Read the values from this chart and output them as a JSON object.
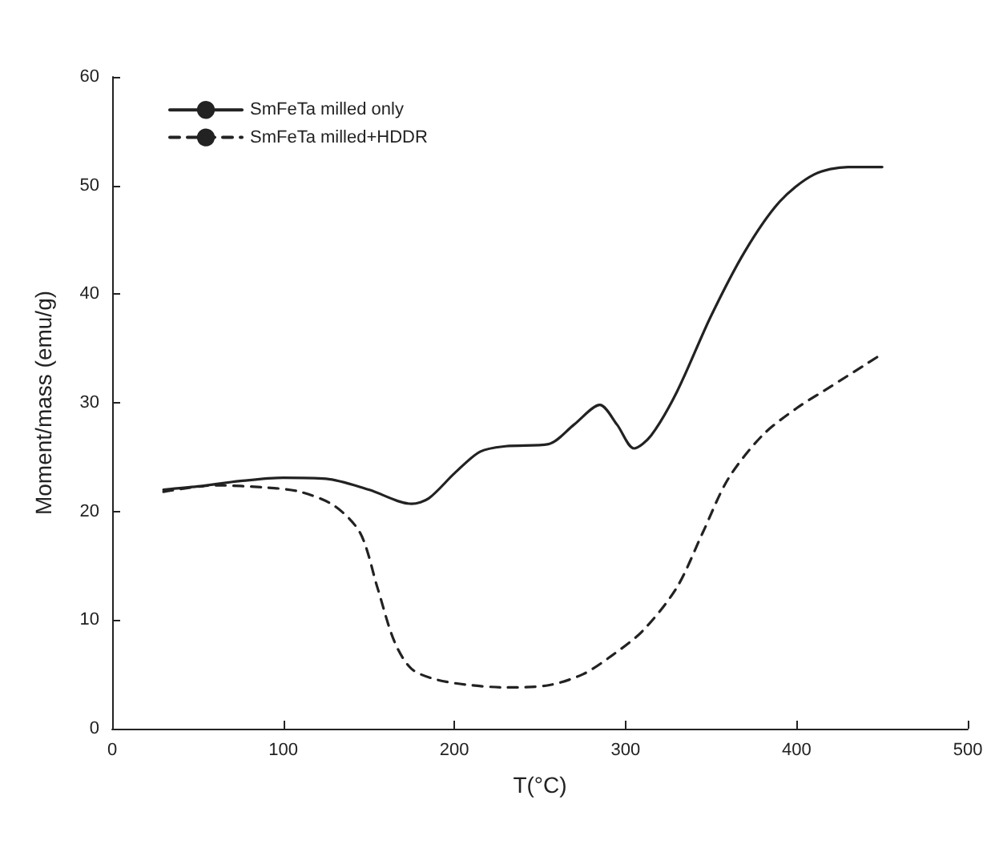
{
  "chart_data": {
    "type": "line",
    "xlabel": "T(°C)",
    "ylabel": "Moment/mass (emu/g)",
    "xlim": [
      0,
      500
    ],
    "xticks": [
      0,
      100,
      200,
      300,
      400,
      500
    ],
    "ylim": [
      0,
      60
    ],
    "yticks": [
      0,
      10,
      20,
      30,
      40,
      50,
      60
    ],
    "grid": false,
    "legend": "top left",
    "marker": "none",
    "series": [
      {
        "name": "SmFeTa milled only",
        "color": "#222222",
        "line_style": "solid",
        "x": [
          30,
          50,
          75,
          100,
          125,
          150,
          175,
          185,
          200,
          215,
          230,
          255,
          270,
          285,
          295,
          305,
          315,
          330,
          350,
          370,
          390,
          410,
          430,
          450
        ],
        "values": [
          22,
          22.3,
          22.8,
          23.1,
          23,
          22,
          20.7,
          21.2,
          23.5,
          25.5,
          26,
          26.2,
          28,
          29.8,
          28,
          25.8,
          27,
          31,
          38,
          44,
          48.5,
          51,
          51.7,
          51.7
        ]
      },
      {
        "name": "SmFeTa milled+HDDR",
        "color": "#222222",
        "line_style": "dashed",
        "x": [
          30,
          60,
          90,
          110,
          130,
          145,
          155,
          165,
          175,
          190,
          210,
          230,
          255,
          275,
          290,
          310,
          330,
          345,
          360,
          380,
          400,
          420,
          440,
          450
        ],
        "values": [
          21.8,
          22.4,
          22.2,
          21.8,
          20.5,
          18,
          13,
          8,
          5.5,
          4.5,
          4,
          3.8,
          4,
          5,
          6.5,
          9,
          13,
          18,
          23,
          27,
          29.5,
          31.5,
          33.5,
          34.5
        ]
      }
    ]
  }
}
